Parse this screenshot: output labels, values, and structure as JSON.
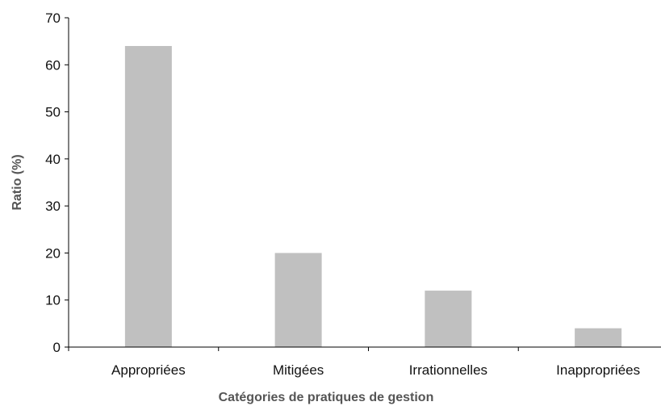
{
  "chart_data": {
    "type": "bar",
    "title": "",
    "xlabel": "Catégories de pratiques de gestion",
    "ylabel": "Ratio (%)",
    "categories": [
      "Appropriées",
      "Mitigées",
      "Irrationnelles",
      "Inappropriées"
    ],
    "values": [
      64,
      20,
      12,
      4
    ],
    "ylim": [
      0,
      70
    ],
    "yticks": [
      "0",
      "10",
      "20",
      "30",
      "40",
      "50",
      "60",
      "70"
    ],
    "grid": false,
    "legend": "none",
    "colors": {
      "bar": "#c0c0c0",
      "axis": "#000000",
      "axis_title": "#555555",
      "tick_text": "#111111"
    }
  }
}
